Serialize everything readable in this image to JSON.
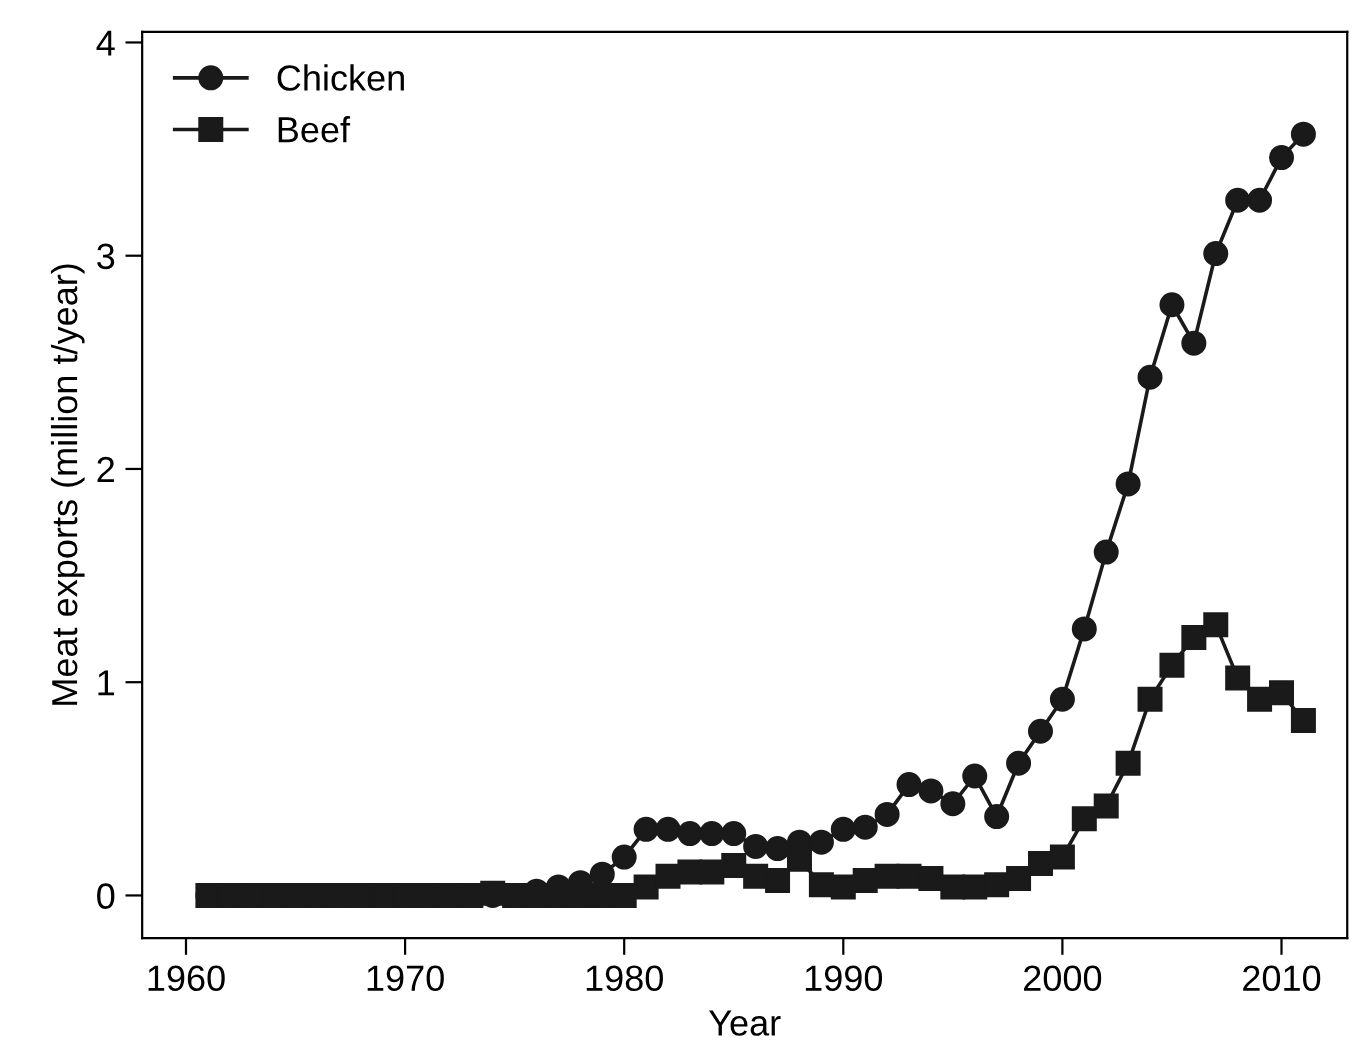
{
  "chart_data": {
    "type": "line",
    "xlabel": "Year",
    "ylabel": "Meat exports (million t/year)",
    "x": [
      1961,
      1962,
      1963,
      1964,
      1965,
      1966,
      1967,
      1968,
      1969,
      1970,
      1971,
      1972,
      1973,
      1974,
      1975,
      1976,
      1977,
      1978,
      1979,
      1980,
      1981,
      1982,
      1983,
      1984,
      1985,
      1986,
      1987,
      1988,
      1989,
      1990,
      1991,
      1992,
      1993,
      1994,
      1995,
      1996,
      1997,
      1998,
      1999,
      2000,
      2001,
      2002,
      2003,
      2004,
      2005,
      2006,
      2007,
      2008,
      2009,
      2010,
      2011
    ],
    "series": [
      {
        "name": "Chicken",
        "color": "#1a1a1a",
        "marker": "circle",
        "values": [
          0,
          0,
          0,
          0,
          0,
          0,
          0,
          0,
          0,
          0,
          0,
          0,
          0,
          0,
          0,
          0.02,
          0.04,
          0.06,
          0.1,
          0.18,
          0.31,
          0.31,
          0.29,
          0.29,
          0.29,
          0.23,
          0.22,
          0.25,
          0.25,
          0.31,
          0.32,
          0.38,
          0.52,
          0.49,
          0.43,
          0.56,
          0.37,
          0.62,
          0.77,
          0.92,
          1.25,
          1.61,
          1.93,
          2.43,
          2.77,
          2.59,
          3.01,
          3.26,
          3.26,
          3.46,
          3.57
        ]
      },
      {
        "name": "Beef",
        "color": "#1a1a1a",
        "marker": "square",
        "values": [
          0,
          0,
          0,
          0,
          0,
          0,
          0,
          0,
          0,
          0,
          0,
          0,
          0,
          0.01,
          0,
          0,
          0,
          0,
          0,
          0,
          0.04,
          0.09,
          0.11,
          0.11,
          0.14,
          0.09,
          0.07,
          0.17,
          0.05,
          0.04,
          0.07,
          0.09,
          0.09,
          0.08,
          0.04,
          0.04,
          0.05,
          0.08,
          0.15,
          0.18,
          0.36,
          0.42,
          0.62,
          0.92,
          1.08,
          1.21,
          1.27,
          1.02,
          0.92,
          0.95,
          0.82
        ]
      }
    ],
    "xlim": [
      1958,
      2013
    ],
    "xticks": [
      1960,
      1970,
      1980,
      1990,
      2000,
      2010
    ],
    "ylim": [
      -0.2,
      4.05
    ],
    "yticks": [
      0,
      1,
      2,
      3,
      4
    ],
    "grid": false,
    "legend": "top left",
    "line_style": "solid"
  }
}
